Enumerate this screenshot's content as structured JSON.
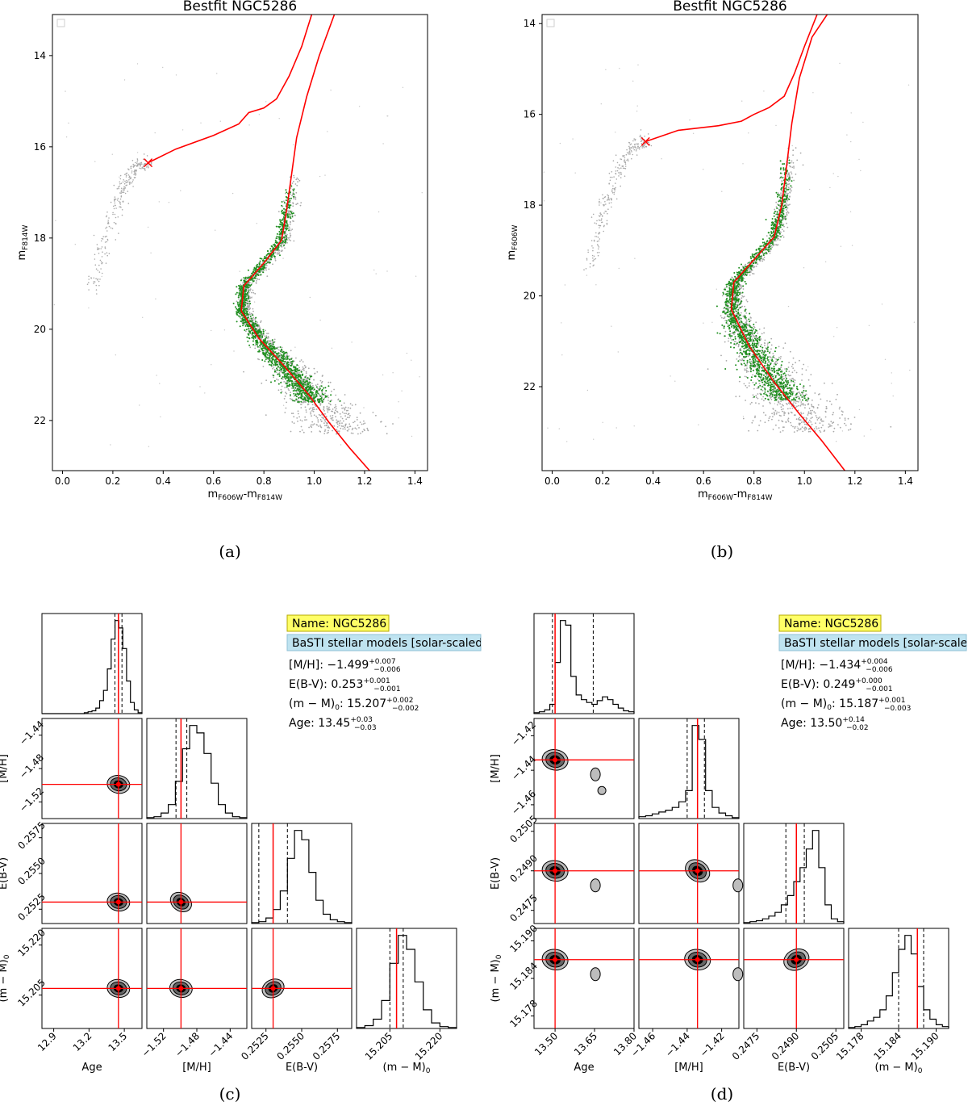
{
  "figure": {
    "captions": [
      "(a)",
      "(b)",
      "(c)",
      "(d)"
    ]
  },
  "colors": {
    "isochrone": "#ff0000",
    "fit_points": "#1f8f1f",
    "background_points": "#a9a9a9",
    "name_box": "#ffff66",
    "model_box": "#bfe3f0",
    "contour_dark": "#000000",
    "contour_mid": "#666666",
    "contour_light": "#bdbdbd"
  },
  "chart_data": [
    {
      "id": "a",
      "type": "scatter",
      "title": "Bestfit NGC5286",
      "xlabel_main": "m",
      "xlabel_sub1": "F606W",
      "xlabel_dash": "-m",
      "xlabel_sub2": "F814W",
      "ylabel_main": "m",
      "ylabel_sub": "F814W",
      "xlim": [
        -0.04,
        1.45
      ],
      "ylim": [
        23.1,
        13.1
      ],
      "xticks": [
        "0.0",
        "0.2",
        "0.4",
        "0.6",
        "0.8",
        "1.0",
        "1.2",
        "1.4"
      ],
      "yticks": [
        "14",
        "16",
        "18",
        "20",
        "22"
      ],
      "isochrone": [
        [
          1.22,
          23.1
        ],
        [
          1.14,
          22.6
        ],
        [
          1.06,
          22.05
        ],
        [
          0.98,
          21.45
        ],
        [
          0.88,
          20.8
        ],
        [
          0.78,
          20.2
        ],
        [
          0.71,
          19.6
        ],
        [
          0.72,
          19.05
        ],
        [
          0.8,
          18.55
        ],
        [
          0.87,
          18.05
        ],
        [
          0.89,
          17.4
        ],
        [
          0.91,
          16.6
        ],
        [
          0.93,
          15.8
        ],
        [
          0.97,
          14.9
        ],
        [
          1.02,
          14.0
        ],
        [
          1.08,
          13.1
        ]
      ],
      "isochrone_agb": [
        [
          0.34,
          16.35
        ],
        [
          0.45,
          16.05
        ],
        [
          0.6,
          15.75
        ],
        [
          0.7,
          15.5
        ],
        [
          0.74,
          15.25
        ],
        [
          0.8,
          15.15
        ],
        [
          0.85,
          14.95
        ],
        [
          0.9,
          14.45
        ],
        [
          0.95,
          13.8
        ],
        [
          0.99,
          13.1
        ]
      ],
      "endpoint": [
        0.34,
        16.35
      ],
      "green_region": {
        "y_min": 16.8,
        "y_max": 21.6
      },
      "grey_region": {
        "y_min": 16.5,
        "y_max": 22.3
      },
      "hb_start": [
        0.34,
        16.35
      ]
    },
    {
      "id": "b",
      "type": "scatter",
      "title": "Bestfit NGC5286",
      "xlabel_main": "m",
      "xlabel_sub1": "F606W",
      "xlabel_dash": "-m",
      "xlabel_sub2": "F814W",
      "ylabel_main": "m",
      "ylabel_sub": "F606W",
      "xlim": [
        -0.04,
        1.45
      ],
      "ylim": [
        23.85,
        13.8
      ],
      "xticks": [
        "0.0",
        "0.2",
        "0.4",
        "0.6",
        "0.8",
        "1.0",
        "1.2",
        "1.4"
      ],
      "yticks": [
        "14",
        "16",
        "18",
        "20",
        "22"
      ],
      "isochrone": [
        [
          1.16,
          23.85
        ],
        [
          1.07,
          23.2
        ],
        [
          0.98,
          22.6
        ],
        [
          0.88,
          21.9
        ],
        [
          0.78,
          21.1
        ],
        [
          0.71,
          20.3
        ],
        [
          0.72,
          19.7
        ],
        [
          0.8,
          19.2
        ],
        [
          0.88,
          18.7
        ],
        [
          0.91,
          18.0
        ],
        [
          0.93,
          17.1
        ],
        [
          0.95,
          16.2
        ],
        [
          0.98,
          15.2
        ],
        [
          1.03,
          14.3
        ],
        [
          1.09,
          13.8
        ]
      ],
      "isochrone_agb": [
        [
          0.37,
          16.6
        ],
        [
          0.5,
          16.35
        ],
        [
          0.66,
          16.25
        ],
        [
          0.75,
          16.15
        ],
        [
          0.8,
          16.0
        ],
        [
          0.86,
          15.85
        ],
        [
          0.92,
          15.6
        ],
        [
          0.96,
          15.1
        ],
        [
          1.0,
          14.5
        ],
        [
          1.05,
          13.8
        ]
      ],
      "endpoint": [
        0.37,
        16.6
      ],
      "green_region": {
        "y_min": 16.9,
        "y_max": 22.3
      },
      "grey_region": {
        "y_min": 16.6,
        "y_max": 23.0
      },
      "hb_start": [
        0.37,
        16.6
      ]
    },
    {
      "id": "c",
      "type": "corner",
      "params": [
        "Age",
        "[M/H]",
        "E(B-V)",
        "(m − M)0"
      ],
      "truth": [
        13.45,
        -1.499,
        0.253,
        15.207
      ],
      "quantiles": [
        [
          13.42,
          13.48
        ],
        [
          -1.505,
          -1.492
        ],
        [
          0.252,
          0.254
        ],
        [
          15.205,
          15.209
        ]
      ],
      "ranges": [
        [
          12.8,
          13.65
        ],
        [
          -1.54,
          -1.42
        ],
        [
          0.2515,
          0.2585
        ],
        [
          15.195,
          15.225
        ]
      ],
      "ticks": [
        {
          "values": [
            12.9,
            13.2,
            13.5
          ],
          "labels": [
            "12.9",
            "13.2",
            "13.5"
          ]
        },
        {
          "values": [
            -1.52,
            -1.48,
            -1.44
          ],
          "labels": [
            "−1.52",
            "−1.48",
            "−1.44"
          ]
        },
        {
          "values": [
            0.2525,
            0.255,
            0.2575
          ],
          "labels": [
            "0.2525",
            "0.2550",
            "0.2575"
          ]
        },
        {
          "values": [
            15.205,
            15.22
          ],
          "labels": [
            "15.205",
            "15.220"
          ]
        }
      ],
      "y_ticks": [
        {
          "values": [
            -1.52,
            -1.48,
            -1.44
          ],
          "labels": [
            "−1.52",
            "−1.48",
            "−1.44"
          ]
        },
        {
          "values": [
            0.2525,
            0.255,
            0.2575
          ],
          "labels": [
            "0.2525",
            "0.2550",
            "0.2575"
          ]
        },
        {
          "values": [
            15.205,
            15.22
          ],
          "labels": [
            "15.205",
            "15.220"
          ]
        }
      ],
      "histograms": [
        [
          0,
          0,
          0,
          0,
          0,
          0,
          0,
          0,
          0,
          0,
          0,
          1,
          2,
          3,
          6,
          14,
          25,
          48,
          80,
          100,
          92,
          70,
          35,
          12,
          4,
          1
        ],
        [
          1,
          2,
          6,
          15,
          40,
          75,
          100,
          92,
          70,
          38,
          15,
          6,
          2,
          1
        ],
        [
          1,
          2,
          6,
          15,
          35,
          70,
          100,
          90,
          55,
          25,
          10,
          4,
          2,
          1
        ],
        [
          1,
          3,
          10,
          30,
          70,
          100,
          85,
          50,
          20,
          6,
          2,
          1
        ]
      ],
      "info": {
        "name": "Name: NGC5286",
        "models": "BaSTI stellar models [solar-scaled]",
        "mh_label": "[M/H]: −1.499",
        "mh_up": "+0.007",
        "mh_dn": "−0.006",
        "ebv_label": "E(B-V): 0.253",
        "ebv_up": "+0.001",
        "ebv_dn": "−0.001",
        "dm_prefix": "(m − M)",
        "dm_sub": "0",
        "dm_value": ": 15.207",
        "dm_up": "+0.002",
        "dm_dn": "−0.002",
        "age_label": "Age: 13.45",
        "age_up": "+0.03",
        "age_dn": "−0.03"
      },
      "xlabels": [
        "Age",
        "[M/H]",
        "E(B-V)",
        "(m − M)"
      ],
      "ylabels": [
        "[M/H]",
        "E(B-V)",
        "(m − M)"
      ]
    },
    {
      "id": "d",
      "type": "corner",
      "params": [
        "Age",
        "[M/H]",
        "E(B-V)",
        "(m − M)0"
      ],
      "truth": [
        13.5,
        -1.434,
        0.249,
        15.187
      ],
      "quantiles": [
        [
          13.49,
          13.645
        ],
        [
          -1.44,
          -1.43
        ],
        [
          0.2486,
          0.2493
        ],
        [
          15.184,
          15.188
        ]
      ],
      "ranges": [
        [
          13.42,
          13.8
        ],
        [
          -1.468,
          -1.41
        ],
        [
          0.247,
          0.2508
        ],
        [
          15.176,
          15.192
        ]
      ],
      "ticks": [
        {
          "values": [
            13.5,
            13.65,
            13.8
          ],
          "labels": [
            "13.50",
            "13.65",
            "13.80"
          ]
        },
        {
          "values": [
            -1.46,
            -1.44,
            -1.42
          ],
          "labels": [
            "−1.46",
            "−1.44",
            "−1.42"
          ]
        },
        {
          "values": [
            0.2475,
            0.249,
            0.2505
          ],
          "labels": [
            "0.2475",
            "0.2490",
            "0.2505"
          ]
        },
        {
          "values": [
            15.178,
            15.184,
            15.19
          ],
          "labels": [
            "15.178",
            "15.184",
            "15.190"
          ]
        }
      ],
      "y_ticks": [
        {
          "values": [
            -1.46,
            -1.44,
            -1.42
          ],
          "labels": [
            "−1.46",
            "−1.44",
            "−1.42"
          ]
        },
        {
          "values": [
            0.2475,
            0.249,
            0.2505
          ],
          "labels": [
            "0.2475",
            "0.2490",
            "0.2505"
          ]
        },
        {
          "values": [
            15.178,
            15.184,
            15.19
          ],
          "labels": [
            "15.178",
            "15.184",
            "15.190"
          ]
        }
      ],
      "histograms": [
        [
          1,
          2,
          4,
          10,
          55,
          100,
          95,
          40,
          20,
          15,
          12,
          10,
          14,
          18,
          15,
          10,
          6,
          3,
          2
        ],
        [
          2,
          3,
          5,
          7,
          9,
          12,
          18,
          30,
          100,
          85,
          30,
          12,
          6,
          3,
          1
        ],
        [
          1,
          2,
          3,
          5,
          8,
          12,
          20,
          30,
          45,
          60,
          80,
          100,
          60,
          20,
          5,
          2
        ],
        [
          1,
          2,
          4,
          8,
          12,
          20,
          35,
          60,
          85,
          100,
          80,
          45,
          20,
          10,
          4,
          2
        ]
      ],
      "info": {
        "name": "Name: NGC5286",
        "models": "BaSTI stellar models [solar-scaled]",
        "mh_label": "[M/H]: −1.434",
        "mh_up": "+0.004",
        "mh_dn": "−0.006",
        "ebv_label": "E(B-V): 0.249",
        "ebv_up": "+0.000",
        "ebv_dn": "−0.001",
        "dm_prefix": "(m − M)",
        "dm_sub": "0",
        "dm_value": ": 15.187",
        "dm_up": "+0.001",
        "dm_dn": "−0.003",
        "age_label": "Age: 13.50",
        "age_up": "+0.14",
        "age_dn": "−0.02"
      },
      "xlabels": [
        "Age",
        "[M/H]",
        "E(B-V)",
        "(m − M)"
      ],
      "ylabels": [
        "[M/H]",
        "E(B-V)",
        "(m − M)"
      ]
    }
  ]
}
